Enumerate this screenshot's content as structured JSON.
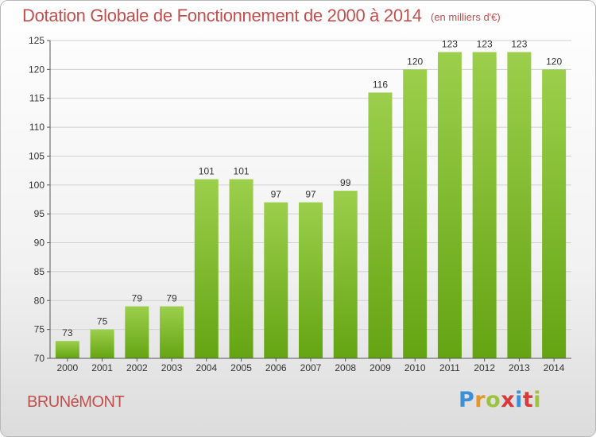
{
  "header": {
    "title": "Dotation Globale de Fonctionnement de 2000 à 2014",
    "subtitle": "(en milliers d'€)"
  },
  "footer": {
    "commune": "BRUNéMONT",
    "logo_letters": [
      "P",
      "r",
      "o",
      "x",
      "i",
      "t",
      "i"
    ]
  },
  "colors": {
    "bar_top": "#9ccf4c",
    "bar_bottom": "#64a412",
    "title": "#c0504d",
    "grid": "#d0d0d0"
  },
  "chart_data": {
    "type": "bar",
    "title": "Dotation Globale de Fonctionnement de 2000 à 2014",
    "subtitle": "(en milliers d'€)",
    "xlabel": "",
    "ylabel": "",
    "categories": [
      "2000",
      "2001",
      "2002",
      "2003",
      "2004",
      "2005",
      "2006",
      "2007",
      "2008",
      "2009",
      "2010",
      "2011",
      "2012",
      "2013",
      "2014"
    ],
    "values": [
      73,
      75,
      79,
      79,
      101,
      101,
      97,
      97,
      99,
      116,
      120,
      123,
      123,
      123,
      120
    ],
    "ylim": [
      70,
      125
    ],
    "yticks": [
      70,
      75,
      80,
      85,
      90,
      95,
      100,
      105,
      110,
      115,
      120,
      125
    ],
    "grid": true,
    "data_labels": true
  }
}
